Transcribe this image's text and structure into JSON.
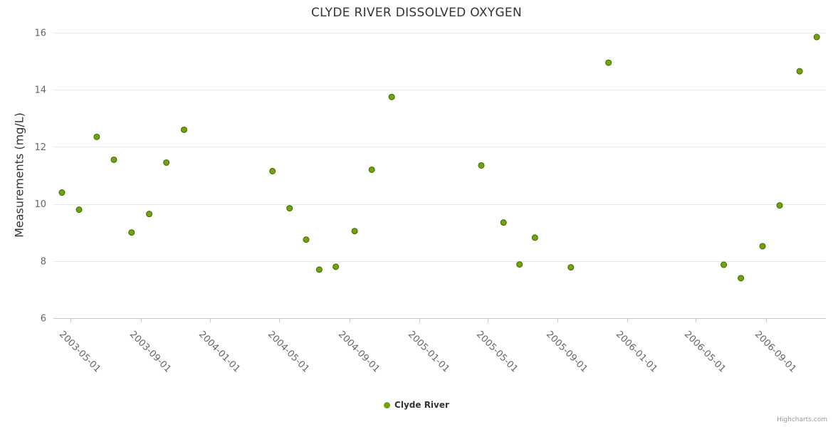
{
  "credit": "Highcharts.com",
  "legend": {
    "items": [
      {
        "label": "Clyde River",
        "color": "#70A40D"
      }
    ]
  },
  "colors": {
    "point_fill": "#70A40D",
    "point_stroke": "#3F6606",
    "grid": "#e6e6e6",
    "axis_line": "#c9c9c9",
    "tick": "#c9c9c9",
    "label": "#666666",
    "title": "#333333",
    "credit": "#999999"
  },
  "chart_data": {
    "type": "scatter",
    "title": "CLYDE RIVER DISSOLVED OXYGEN",
    "xlabel": "",
    "ylabel": "Measurements (mg/L)",
    "ylim": [
      6,
      16
    ],
    "y_ticks": [
      6,
      8,
      10,
      12,
      14,
      16
    ],
    "x_ticks": [
      "2003-05-01",
      "2003-09-01",
      "2004-01-01",
      "2004-05-01",
      "2004-09-01",
      "2005-01-01",
      "2005-05-01",
      "2005-09-01",
      "2006-01-01",
      "2006-05-01",
      "2006-09-01"
    ],
    "x_range": [
      "2003-04-01",
      "2006-12-15"
    ],
    "grid": true,
    "legend_position": "bottom",
    "series": [
      {
        "name": "Clyde River",
        "color": "#70A40D",
        "stroke": "#3F6606",
        "points": [
          {
            "date": "2003-04-16",
            "value": 10.4
          },
          {
            "date": "2003-05-16",
            "value": 9.8
          },
          {
            "date": "2003-06-16",
            "value": 12.35
          },
          {
            "date": "2003-07-16",
            "value": 11.55
          },
          {
            "date": "2003-08-16",
            "value": 9.0
          },
          {
            "date": "2003-09-16",
            "value": 9.65
          },
          {
            "date": "2003-10-16",
            "value": 11.45
          },
          {
            "date": "2003-11-16",
            "value": 12.6
          },
          {
            "date": "2004-04-19",
            "value": 11.15
          },
          {
            "date": "2004-05-19",
            "value": 9.85
          },
          {
            "date": "2004-06-17",
            "value": 8.75
          },
          {
            "date": "2004-07-10",
            "value": 7.7
          },
          {
            "date": "2004-08-08",
            "value": 7.8
          },
          {
            "date": "2004-09-10",
            "value": 9.05
          },
          {
            "date": "2004-10-10",
            "value": 11.2
          },
          {
            "date": "2004-11-14",
            "value": 13.75
          },
          {
            "date": "2005-04-20",
            "value": 11.35
          },
          {
            "date": "2005-05-29",
            "value": 9.35
          },
          {
            "date": "2005-06-26",
            "value": 7.88
          },
          {
            "date": "2005-07-23",
            "value": 8.82
          },
          {
            "date": "2005-09-24",
            "value": 7.78
          },
          {
            "date": "2005-11-29",
            "value": 14.95
          },
          {
            "date": "2006-06-19",
            "value": 7.87
          },
          {
            "date": "2006-07-19",
            "value": 7.4
          },
          {
            "date": "2006-08-26",
            "value": 8.52
          },
          {
            "date": "2006-09-25",
            "value": 9.95
          },
          {
            "date": "2006-10-30",
            "value": 14.65
          },
          {
            "date": "2006-11-29",
            "value": 15.85
          }
        ]
      }
    ]
  }
}
